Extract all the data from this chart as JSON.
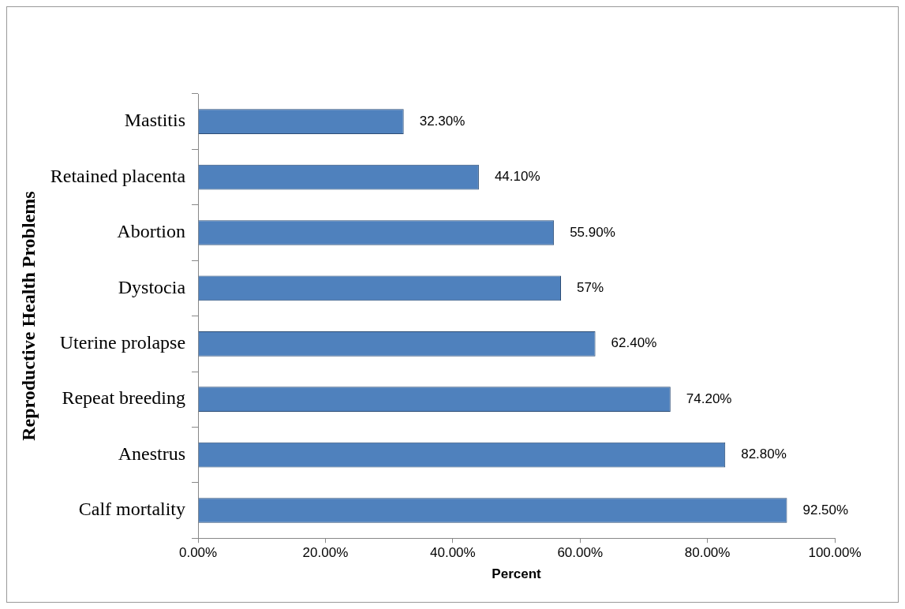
{
  "chart_data": {
    "type": "bar",
    "orientation": "horizontal",
    "xlabel": "Percent",
    "ylabel": "Reproductive Health Problems",
    "categories": [
      "Mastitis",
      "Retained placenta",
      "Abortion",
      "Dystocia",
      "Uterine prolapse",
      "Repeat breeding",
      "Anestrus",
      "Calf mortality"
    ],
    "values": [
      32.3,
      44.1,
      55.9,
      57,
      62.4,
      74.2,
      82.8,
      92.5
    ],
    "value_labels": [
      "32.30%",
      "44.10%",
      "55.90%",
      "57%",
      "62.40%",
      "74.20%",
      "82.80%",
      "92.50%"
    ],
    "color": "#4f81bd",
    "xlim": [
      0,
      100
    ],
    "xticks": [
      {
        "value": 0,
        "label": "0.00%"
      },
      {
        "value": 20,
        "label": "20.00%"
      },
      {
        "value": 40,
        "label": "40.00%"
      },
      {
        "value": 60,
        "label": "60.00%"
      },
      {
        "value": 80,
        "label": "80.00%"
      },
      {
        "value": 100,
        "label": "100.00%"
      }
    ],
    "grid": false,
    "legend": false
  }
}
